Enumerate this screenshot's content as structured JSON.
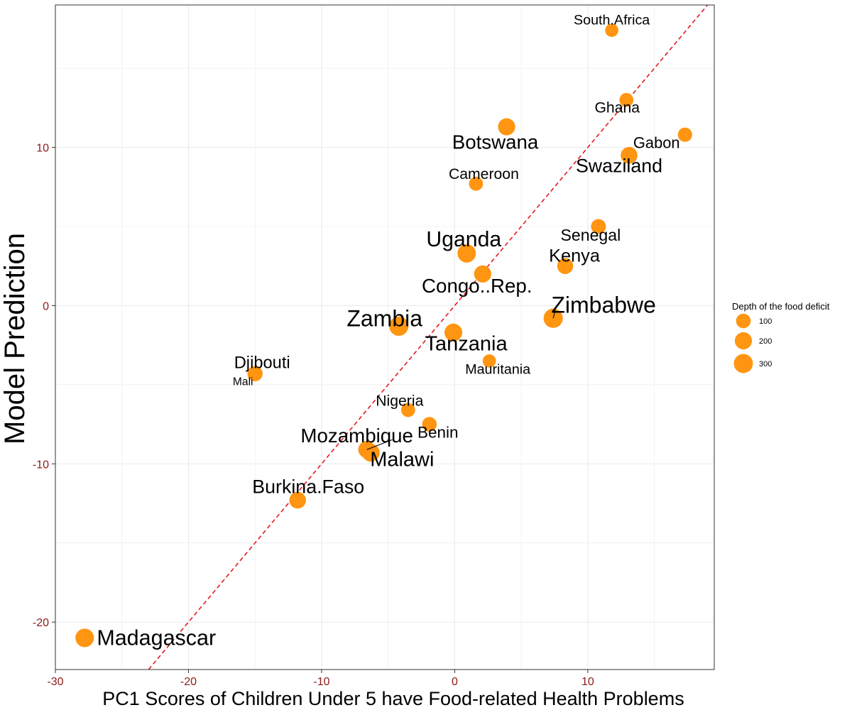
{
  "chart_data": {
    "type": "scatter",
    "title": "",
    "xlabel": "PC1 Scores of Children Under 5 have Food-related Health Problems",
    "ylabel": "Model Prediction",
    "xlim": [
      -30,
      19.5
    ],
    "ylim": [
      -23,
      19
    ],
    "x_ticks": [
      -30,
      -20,
      -10,
      0,
      10
    ],
    "y_ticks": [
      -20,
      -10,
      0,
      10
    ],
    "grid": true,
    "reference_line": {
      "slope": 1,
      "intercept": 0,
      "color": "#e41a1c",
      "style": "dashed"
    },
    "point_color": "#ff9510",
    "tick_label_color": "#8b1a1a",
    "legend": {
      "title": "Depth of the food deficit",
      "position": "right",
      "entries": [
        {
          "label": "100",
          "value": 100
        },
        {
          "label": "200",
          "value": 200
        },
        {
          "label": "300",
          "value": 300
        }
      ]
    },
    "points": [
      {
        "name": "South.Africa",
        "x": 11.8,
        "y": 17.4,
        "size": 60
      },
      {
        "name": "Ghana",
        "x": 12.9,
        "y": 13.0,
        "size": 80
      },
      {
        "name": "Botswana",
        "x": 3.9,
        "y": 11.3,
        "size": 200
      },
      {
        "name": "Gabon",
        "x": 17.3,
        "y": 10.8,
        "size": 90
      },
      {
        "name": "Swaziland",
        "x": 13.1,
        "y": 9.5,
        "size": 180
      },
      {
        "name": "Cameroon",
        "x": 1.6,
        "y": 7.7,
        "size": 80
      },
      {
        "name": "Senegal",
        "x": 10.8,
        "y": 5.0,
        "size": 110
      },
      {
        "name": "Uganda",
        "x": 0.9,
        "y": 3.3,
        "size": 260
      },
      {
        "name": "Kenya",
        "x": 8.3,
        "y": 2.5,
        "size": 150
      },
      {
        "name": "Congo..Rep.",
        "x": 2.1,
        "y": 2.0,
        "size": 200
      },
      {
        "name": "Zimbabwe",
        "x": 7.4,
        "y": -0.8,
        "size": 310
      },
      {
        "name": "Zambia",
        "x": -4.2,
        "y": -1.3,
        "size": 310
      },
      {
        "name": "Tanzania",
        "x": -0.1,
        "y": -1.7,
        "size": 230
      },
      {
        "name": "Mauritania",
        "x": 2.6,
        "y": -3.5,
        "size": 60
      },
      {
        "name": "Djibouti",
        "x": -15.0,
        "y": -4.3,
        "size": 120
      },
      {
        "name": "Mali",
        "x": -15.0,
        "y": -4.3,
        "size": 20
      },
      {
        "name": "Nigeria",
        "x": -3.5,
        "y": -6.6,
        "size": 80
      },
      {
        "name": "Benin",
        "x": -1.9,
        "y": -7.5,
        "size": 100
      },
      {
        "name": "Mozambique",
        "x": -6.6,
        "y": -9.1,
        "size": 200
      },
      {
        "name": "Malawi",
        "x": -6.3,
        "y": -9.3,
        "size": 230
      },
      {
        "name": "Burkina.Faso",
        "x": -11.8,
        "y": -12.3,
        "size": 180
      },
      {
        "name": "Madagascar",
        "x": -27.8,
        "y": -21.0,
        "size": 270
      }
    ]
  }
}
